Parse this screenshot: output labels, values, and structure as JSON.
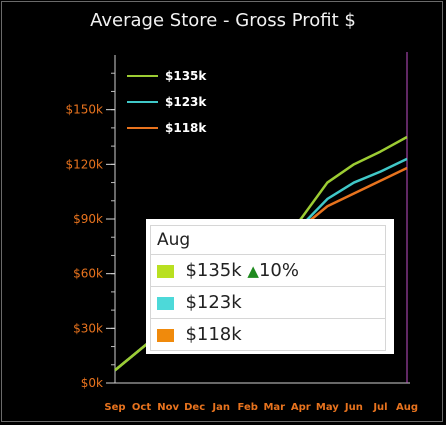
{
  "chart_data": {
    "type": "line",
    "title": "Average Store - Gross Profit $",
    "categories": [
      "Sep",
      "Oct",
      "Nov",
      "Dec",
      "Jan",
      "Feb",
      "Mar",
      "Apr",
      "May",
      "Jun",
      "Jul",
      "Aug"
    ],
    "ylim": [
      0,
      180000
    ],
    "y_ticks": [
      "$0k",
      "$30k",
      "$60k",
      "$90k",
      "$120k",
      "$150k"
    ],
    "y_tick_values": [
      0,
      30000,
      60000,
      90000,
      120000,
      150000
    ],
    "legend_position": "top-left",
    "grid": false,
    "series": [
      {
        "name": "$135k",
        "color": "#9ccc33",
        "values": [
          7000,
          19000,
          31000,
          43000,
          55000,
          66000,
          76000,
          90000,
          110000,
          120000,
          127000,
          135000
        ]
      },
      {
        "name": "$123k",
        "color": "#40c8c8",
        "values": [
          7000,
          19000,
          31000,
          43000,
          55000,
          66000,
          76000,
          86000,
          101000,
          110000,
          116000,
          123000
        ]
      },
      {
        "name": "$118k",
        "color": "#e8731e",
        "values": [
          7000,
          19000,
          31000,
          43000,
          55000,
          66000,
          76000,
          85000,
          97000,
          104000,
          111000,
          118000
        ]
      }
    ],
    "cursor_category": "Aug"
  },
  "tooltip": {
    "header": "Aug",
    "rows": [
      {
        "value": "$135k",
        "change": "10%",
        "color": "#b9e021"
      },
      {
        "value": "$123k",
        "change": "",
        "color": "#4dd9d9"
      },
      {
        "value": "$118k",
        "change": "",
        "color": "#f08a0c"
      }
    ],
    "up_icon": "triangle-up-icon"
  }
}
